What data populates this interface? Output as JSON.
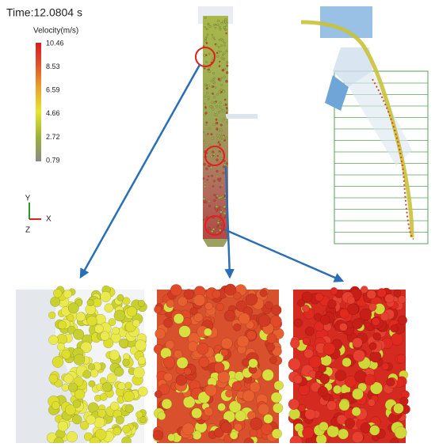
{
  "header": {
    "time": "Time:12.0804 s"
  },
  "colorbar": {
    "title": "Velocity(m/s)",
    "ticks": [
      "10.46",
      "8.53",
      "6.59",
      "4.66",
      "2.72",
      "0.79"
    ]
  },
  "axes_triad": {
    "y": "Y",
    "x": "X",
    "z": "Z"
  }
}
